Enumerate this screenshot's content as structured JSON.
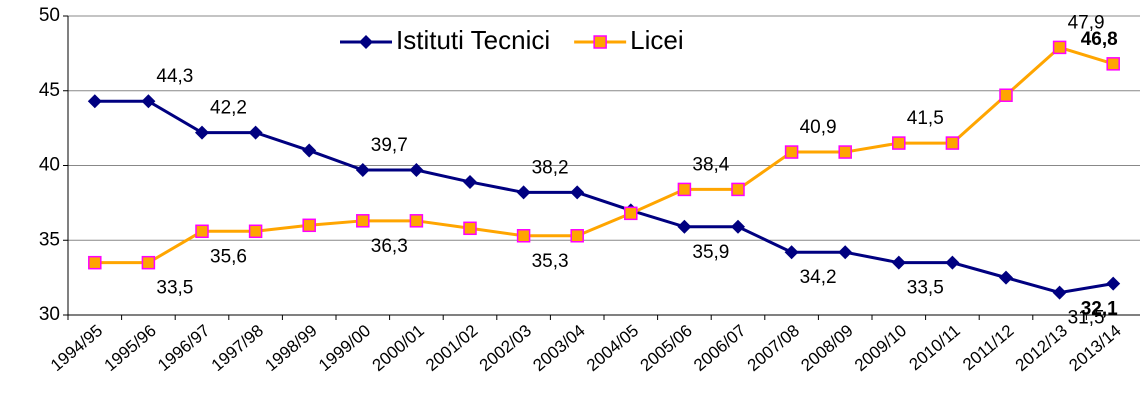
{
  "chart_data": {
    "type": "line",
    "categories": [
      "1994/95",
      "1995/96",
      "1996/97",
      "1997/98",
      "1998/99",
      "1999/00",
      "2000/01",
      "2001/02",
      "2002/03",
      "2003/04",
      "2004/05",
      "2005/06",
      "2006/07",
      "2007/08",
      "2008/09",
      "2009/10",
      "2010/11",
      "2011/12",
      "2012/13",
      "2013/14"
    ],
    "series": [
      {
        "name": "Istituti Tecnici",
        "color": "#000080",
        "values": [
          44.3,
          44.3,
          42.2,
          42.2,
          41.0,
          39.7,
          39.7,
          38.9,
          38.2,
          38.2,
          37.0,
          35.9,
          35.9,
          34.2,
          34.2,
          33.5,
          33.5,
          32.5,
          31.5,
          32.1
        ],
        "value_labels": [
          null,
          "44,3",
          "42,2",
          null,
          null,
          "39,7",
          null,
          null,
          "38,2",
          null,
          null,
          "35,9",
          null,
          "34,2",
          null,
          "33,5",
          null,
          null,
          "31,5",
          "32,1"
        ]
      },
      {
        "name": "Licei",
        "color": "#ffa500",
        "marker_edge": "#ff00ff",
        "values": [
          33.5,
          33.5,
          35.6,
          35.6,
          36.0,
          36.3,
          36.3,
          35.8,
          35.3,
          35.3,
          36.8,
          38.4,
          38.4,
          40.9,
          40.9,
          41.5,
          41.5,
          44.7,
          47.9,
          46.8
        ],
        "value_labels": [
          null,
          "33,5",
          "35,6",
          null,
          null,
          "36,3",
          null,
          null,
          "35,3",
          null,
          null,
          "38,4",
          null,
          "40,9",
          null,
          "41,5",
          null,
          null,
          "47,9",
          "46,8"
        ]
      }
    ],
    "ylim": [
      30,
      50
    ],
    "yticks": [
      30,
      35,
      40,
      45,
      50
    ],
    "grid": true
  }
}
